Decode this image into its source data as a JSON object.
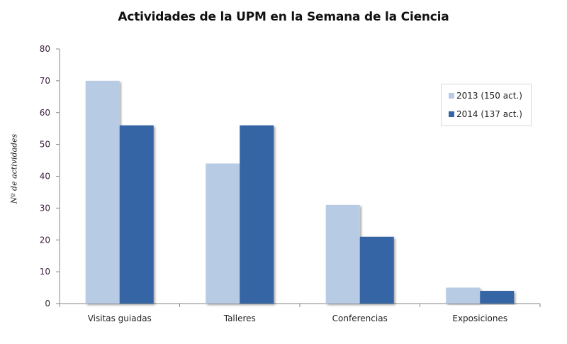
{
  "chart_data": {
    "type": "bar",
    "title": "Actividades de la UPM en la Semana de la Ciencia",
    "xlabel": "",
    "ylabel": "Nº de actividades",
    "ylim": [
      0,
      80
    ],
    "yticks": [
      0,
      10,
      20,
      30,
      40,
      50,
      60,
      70,
      80
    ],
    "grid": false,
    "legend_position": "upper right",
    "categories": [
      "Visitas guiadas",
      "Talleres",
      "Conferencias",
      "Exposiciones"
    ],
    "series": [
      {
        "name": "2013 (150 act.)",
        "color": "#b7cce4",
        "values": [
          70,
          44,
          31,
          5
        ]
      },
      {
        "name": "2014 (137 act.)",
        "color": "#3465a4",
        "values": [
          56,
          56,
          21,
          4
        ]
      }
    ]
  },
  "legend": {
    "items": [
      {
        "label": "2013 (150 act.)",
        "color": "#b7cce4"
      },
      {
        "label": "2014 (137 act.)",
        "color": "#3465a4"
      }
    ]
  }
}
